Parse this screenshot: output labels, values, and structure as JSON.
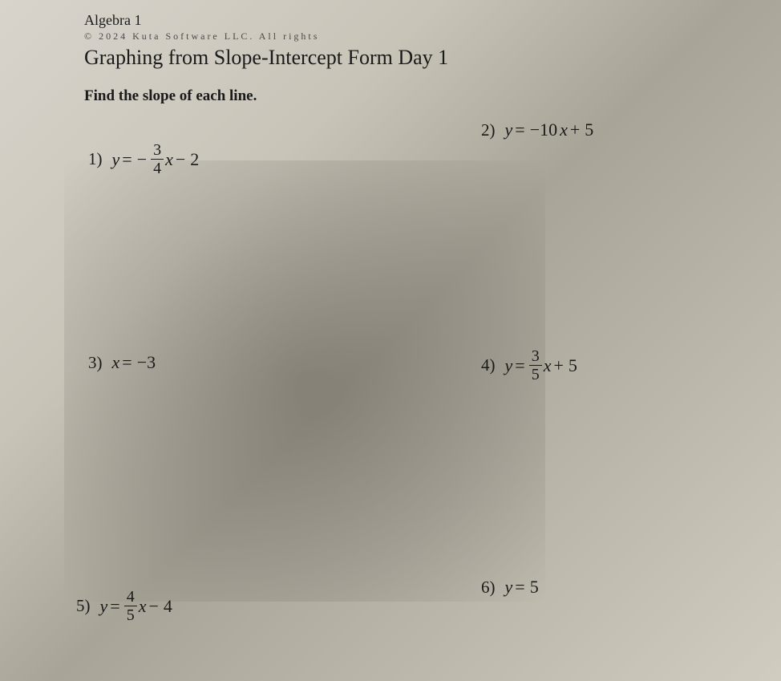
{
  "header": {
    "course": "Algebra 1",
    "copyright": "© 2024 Kuta Software LLC. All rights",
    "title": "Graphing from Slope-Intercept Form Day 1",
    "instructions": "Find the slope of each line."
  },
  "problems": {
    "p1": {
      "num": "1)",
      "lhs": "y",
      "eq": "=",
      "neg": "−",
      "frac_num": "3",
      "frac_den": "4",
      "var": "x",
      "op": "−",
      "const": "2"
    },
    "p2": {
      "num": "2)",
      "lhs": "y",
      "eq": "=",
      "coef": "−10",
      "var": "x",
      "op": "+",
      "const": "5"
    },
    "p3": {
      "num": "3)",
      "lhs": "x",
      "eq": "=",
      "const": "−3"
    },
    "p4": {
      "num": "4)",
      "lhs": "y",
      "eq": "=",
      "frac_num": "3",
      "frac_den": "5",
      "var": "x",
      "op": "+",
      "const": "5"
    },
    "p5": {
      "num": "5)",
      "lhs": "y",
      "eq": "=",
      "frac_num": "4",
      "frac_den": "5",
      "var": "x",
      "op": "−",
      "const": "4"
    },
    "p6": {
      "num": "6)",
      "lhs": "y",
      "eq": "=",
      "const": "5"
    }
  },
  "style": {
    "background_gradient": [
      "#d8d4cc",
      "#c8c4b8",
      "#a8a498",
      "#b8b4a8",
      "#d0ccc0"
    ],
    "text_color": "#1a1a1a",
    "font_family": "Times New Roman",
    "title_fontsize": 26,
    "instruction_fontsize": 19,
    "problem_fontsize": 22,
    "fraction_fontsize": 20,
    "copyright_fontsize": 12,
    "course_fontsize": 18
  }
}
